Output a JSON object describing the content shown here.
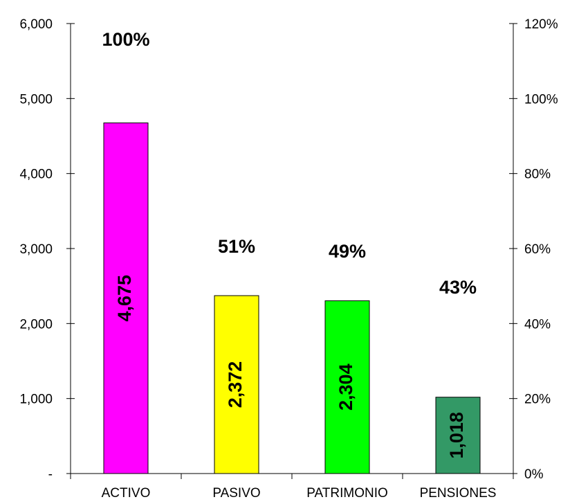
{
  "chart_data": {
    "type": "bar",
    "categories": [
      "ACTIVO",
      "PASIVO",
      "PATRIMONIO",
      "PENSIONES"
    ],
    "values": [
      4675,
      2372,
      2304,
      1018
    ],
    "value_labels": [
      "4,675",
      "2,372",
      "2,304",
      "1,018"
    ],
    "percent_values": [
      100,
      51,
      49,
      43
    ],
    "percent_labels": [
      "100%",
      "51%",
      "49%",
      "43%"
    ],
    "bar_colors": [
      "#FF00FF",
      "#FFFF00",
      "#00FF00",
      "#339966"
    ],
    "y_left": {
      "ylim": [
        0,
        6000
      ],
      "ticks": [
        0,
        1000,
        2000,
        3000,
        4000,
        5000,
        6000
      ],
      "tick_labels": [
        "-",
        "1,000",
        "2,000",
        "3,000",
        "4,000",
        "5,000",
        "6,000"
      ]
    },
    "y_right": {
      "ylim": [
        0,
        120
      ],
      "ticks": [
        0,
        20,
        40,
        60,
        80,
        100,
        120
      ],
      "tick_labels": [
        "0%",
        "20%",
        "40%",
        "60%",
        "80%",
        "100%",
        "120%"
      ]
    },
    "grid": false,
    "legend": "none"
  }
}
